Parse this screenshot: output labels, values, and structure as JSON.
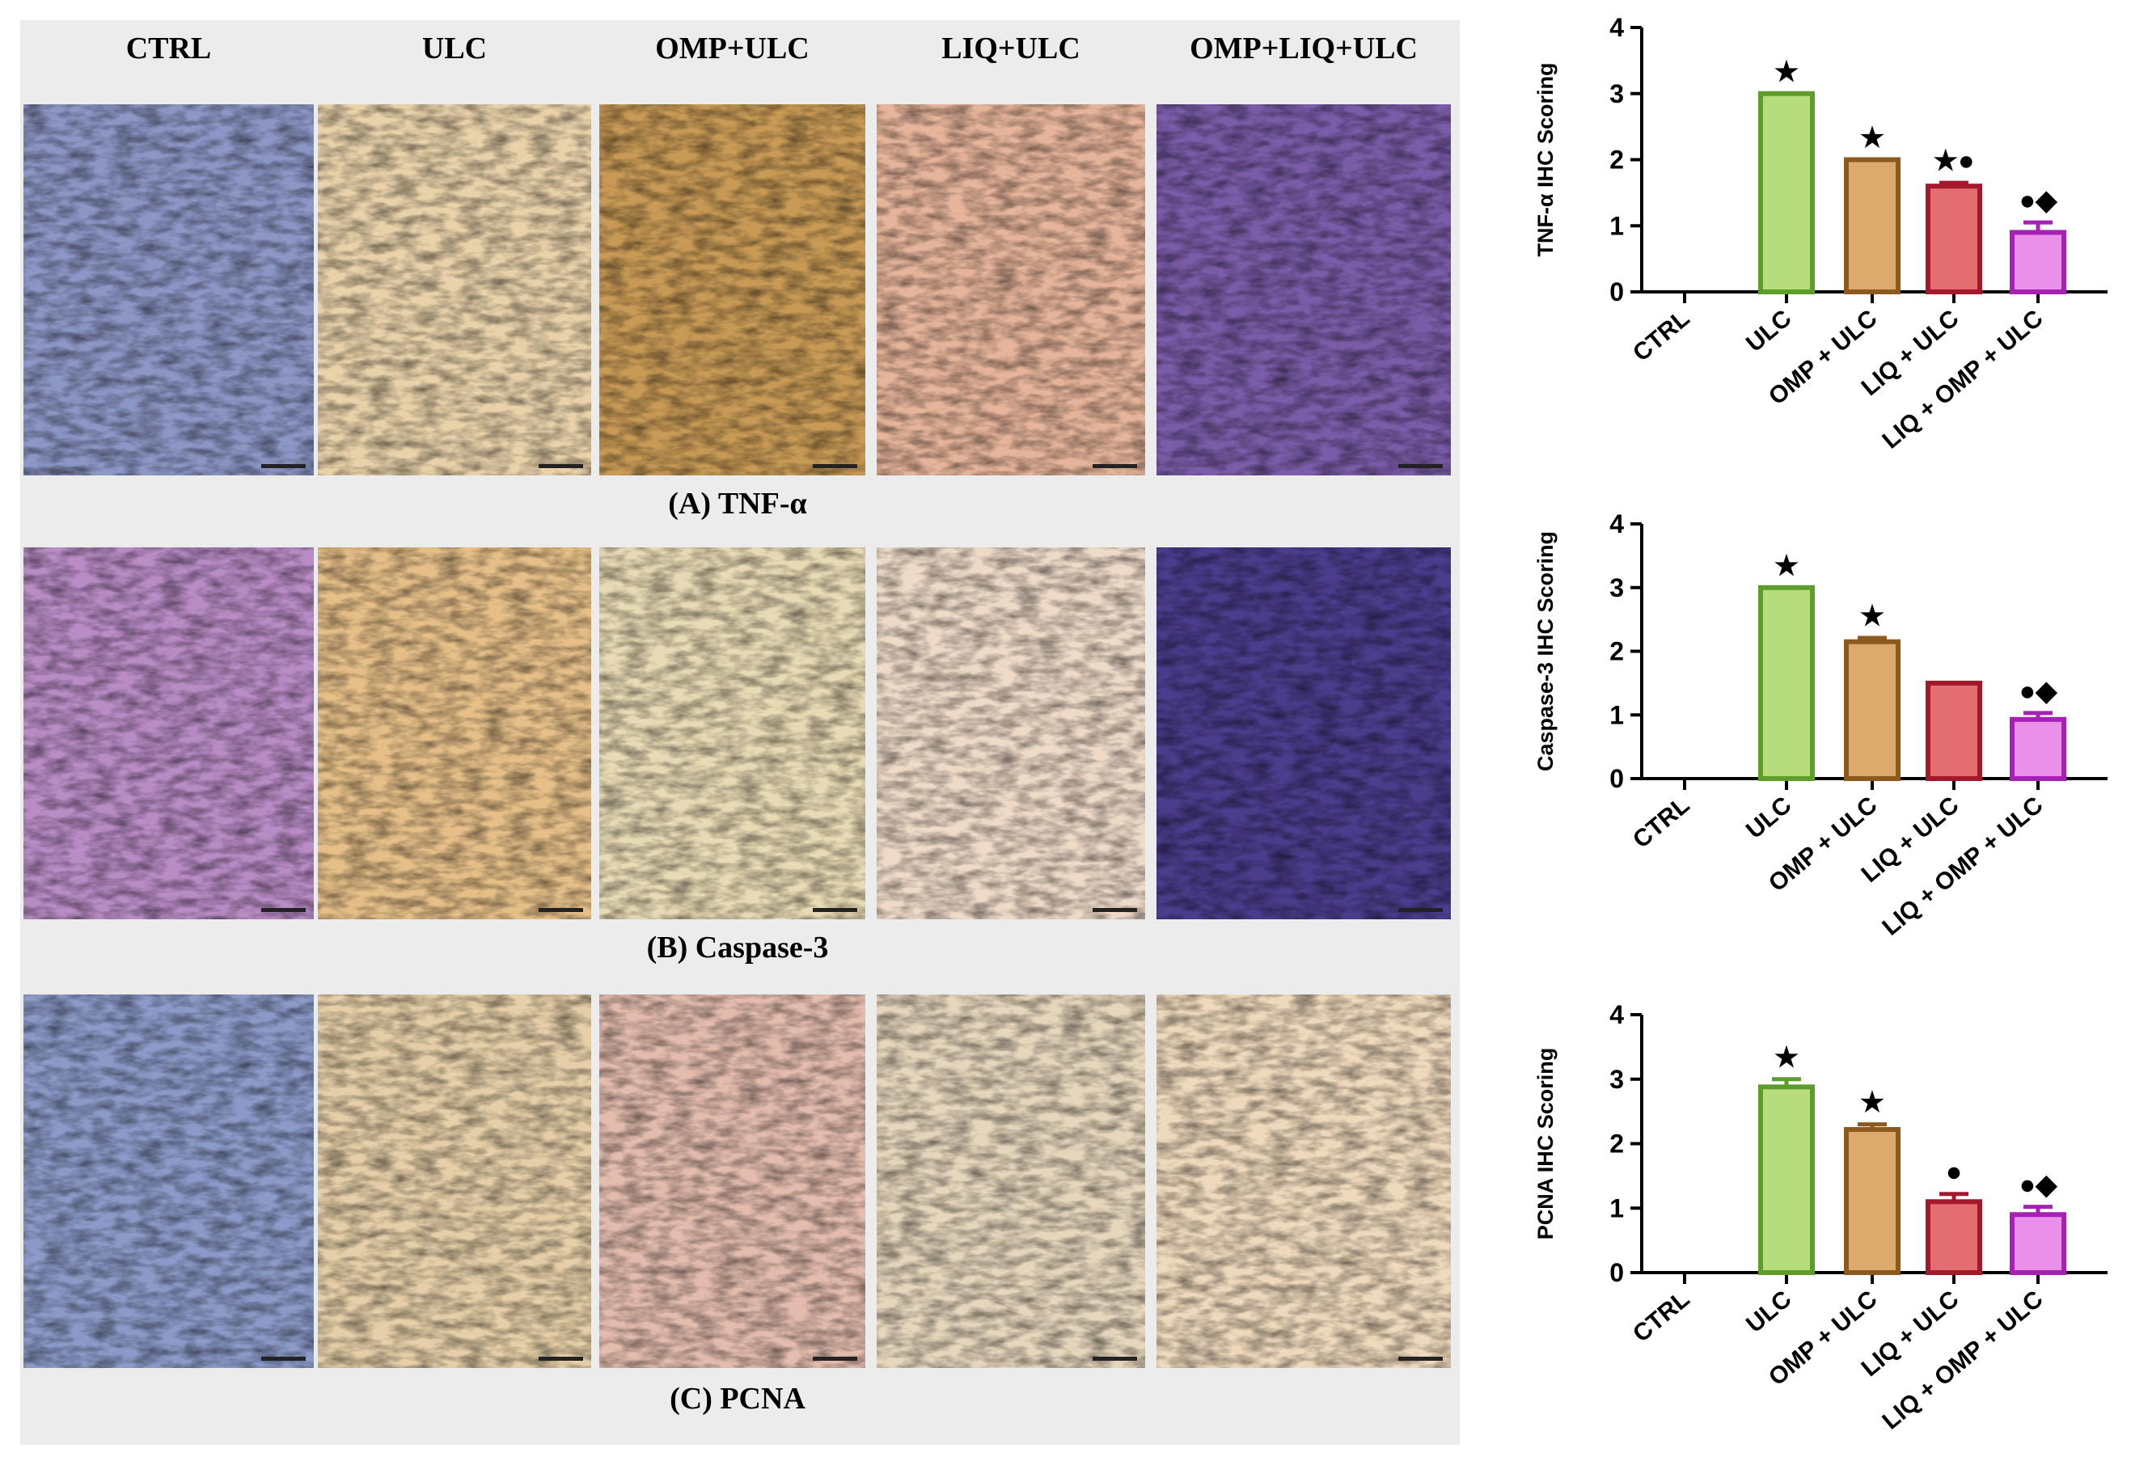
{
  "figure": {
    "columns": [
      "CTRL",
      "ULC",
      "OMP+ULC",
      "LIQ+ULC",
      "OMP+LIQ+ULC"
    ],
    "rows": [
      {
        "caption": "(A) TNF-α"
      },
      {
        "caption": "(B) Caspase-3"
      },
      {
        "caption": "(C) PCNA"
      }
    ]
  },
  "chart_data": [
    {
      "type": "bar",
      "ylabel": "TNF-α IHC Scoring",
      "categories": [
        "CTRL",
        "ULC",
        "OMP + ULC",
        "LIQ + ULC",
        "LIQ + OMP + ULC"
      ],
      "values": [
        0,
        3,
        2,
        1.6,
        0.9
      ],
      "errors": [
        0,
        0,
        0,
        0.05,
        0.15
      ],
      "annotations": [
        null,
        "★",
        "★",
        "★●",
        "●◆"
      ],
      "colors": [
        "#ffffff",
        "#b6dc7c",
        "#dcaa6c",
        "#e36d70",
        "#ea90ea"
      ],
      "edgecolors": [
        "#000000",
        "#5e9c2e",
        "#8c5a1e",
        "#a3182a",
        "#a421b4"
      ],
      "ylim": [
        0,
        4
      ],
      "yticks": [
        0,
        1,
        2,
        3,
        4
      ]
    },
    {
      "type": "bar",
      "ylabel": "Caspase-3 IHC Scoring",
      "categories": [
        "CTRL",
        "ULC",
        "OMP + ULC",
        "LIQ + ULC",
        "LIQ + OMP + ULC"
      ],
      "values": [
        0,
        3,
        2.15,
        1.5,
        0.93
      ],
      "errors": [
        0,
        0,
        0.06,
        0,
        0.1
      ],
      "annotations": [
        null,
        "★",
        "★",
        null,
        "●◆"
      ],
      "colors": [
        "#ffffff",
        "#b6dc7c",
        "#dcaa6c",
        "#e36d70",
        "#ea90ea"
      ],
      "edgecolors": [
        "#000000",
        "#5e9c2e",
        "#8c5a1e",
        "#a3182a",
        "#a421b4"
      ],
      "ylim": [
        0,
        4
      ],
      "yticks": [
        0,
        1,
        2,
        3,
        4
      ]
    },
    {
      "type": "bar",
      "ylabel": "PCNA IHC Scoring",
      "categories": [
        "CTRL",
        "ULC",
        "OMP + ULC",
        "LIQ + ULC",
        "LIQ + OMP + ULC"
      ],
      "values": [
        0,
        2.88,
        2.22,
        1.1,
        0.9
      ],
      "errors": [
        0,
        0.12,
        0.08,
        0.12,
        0.12
      ],
      "annotations": [
        null,
        "★",
        "★",
        "●",
        "●◆"
      ],
      "colors": [
        "#ffffff",
        "#b6dc7c",
        "#dcaa6c",
        "#e36d70",
        "#ea90ea"
      ],
      "edgecolors": [
        "#000000",
        "#5e9c2e",
        "#8c5a1e",
        "#a3182a",
        "#a421b4"
      ],
      "ylim": [
        0,
        4
      ],
      "yticks": [
        0,
        1,
        2,
        3,
        4
      ]
    }
  ]
}
